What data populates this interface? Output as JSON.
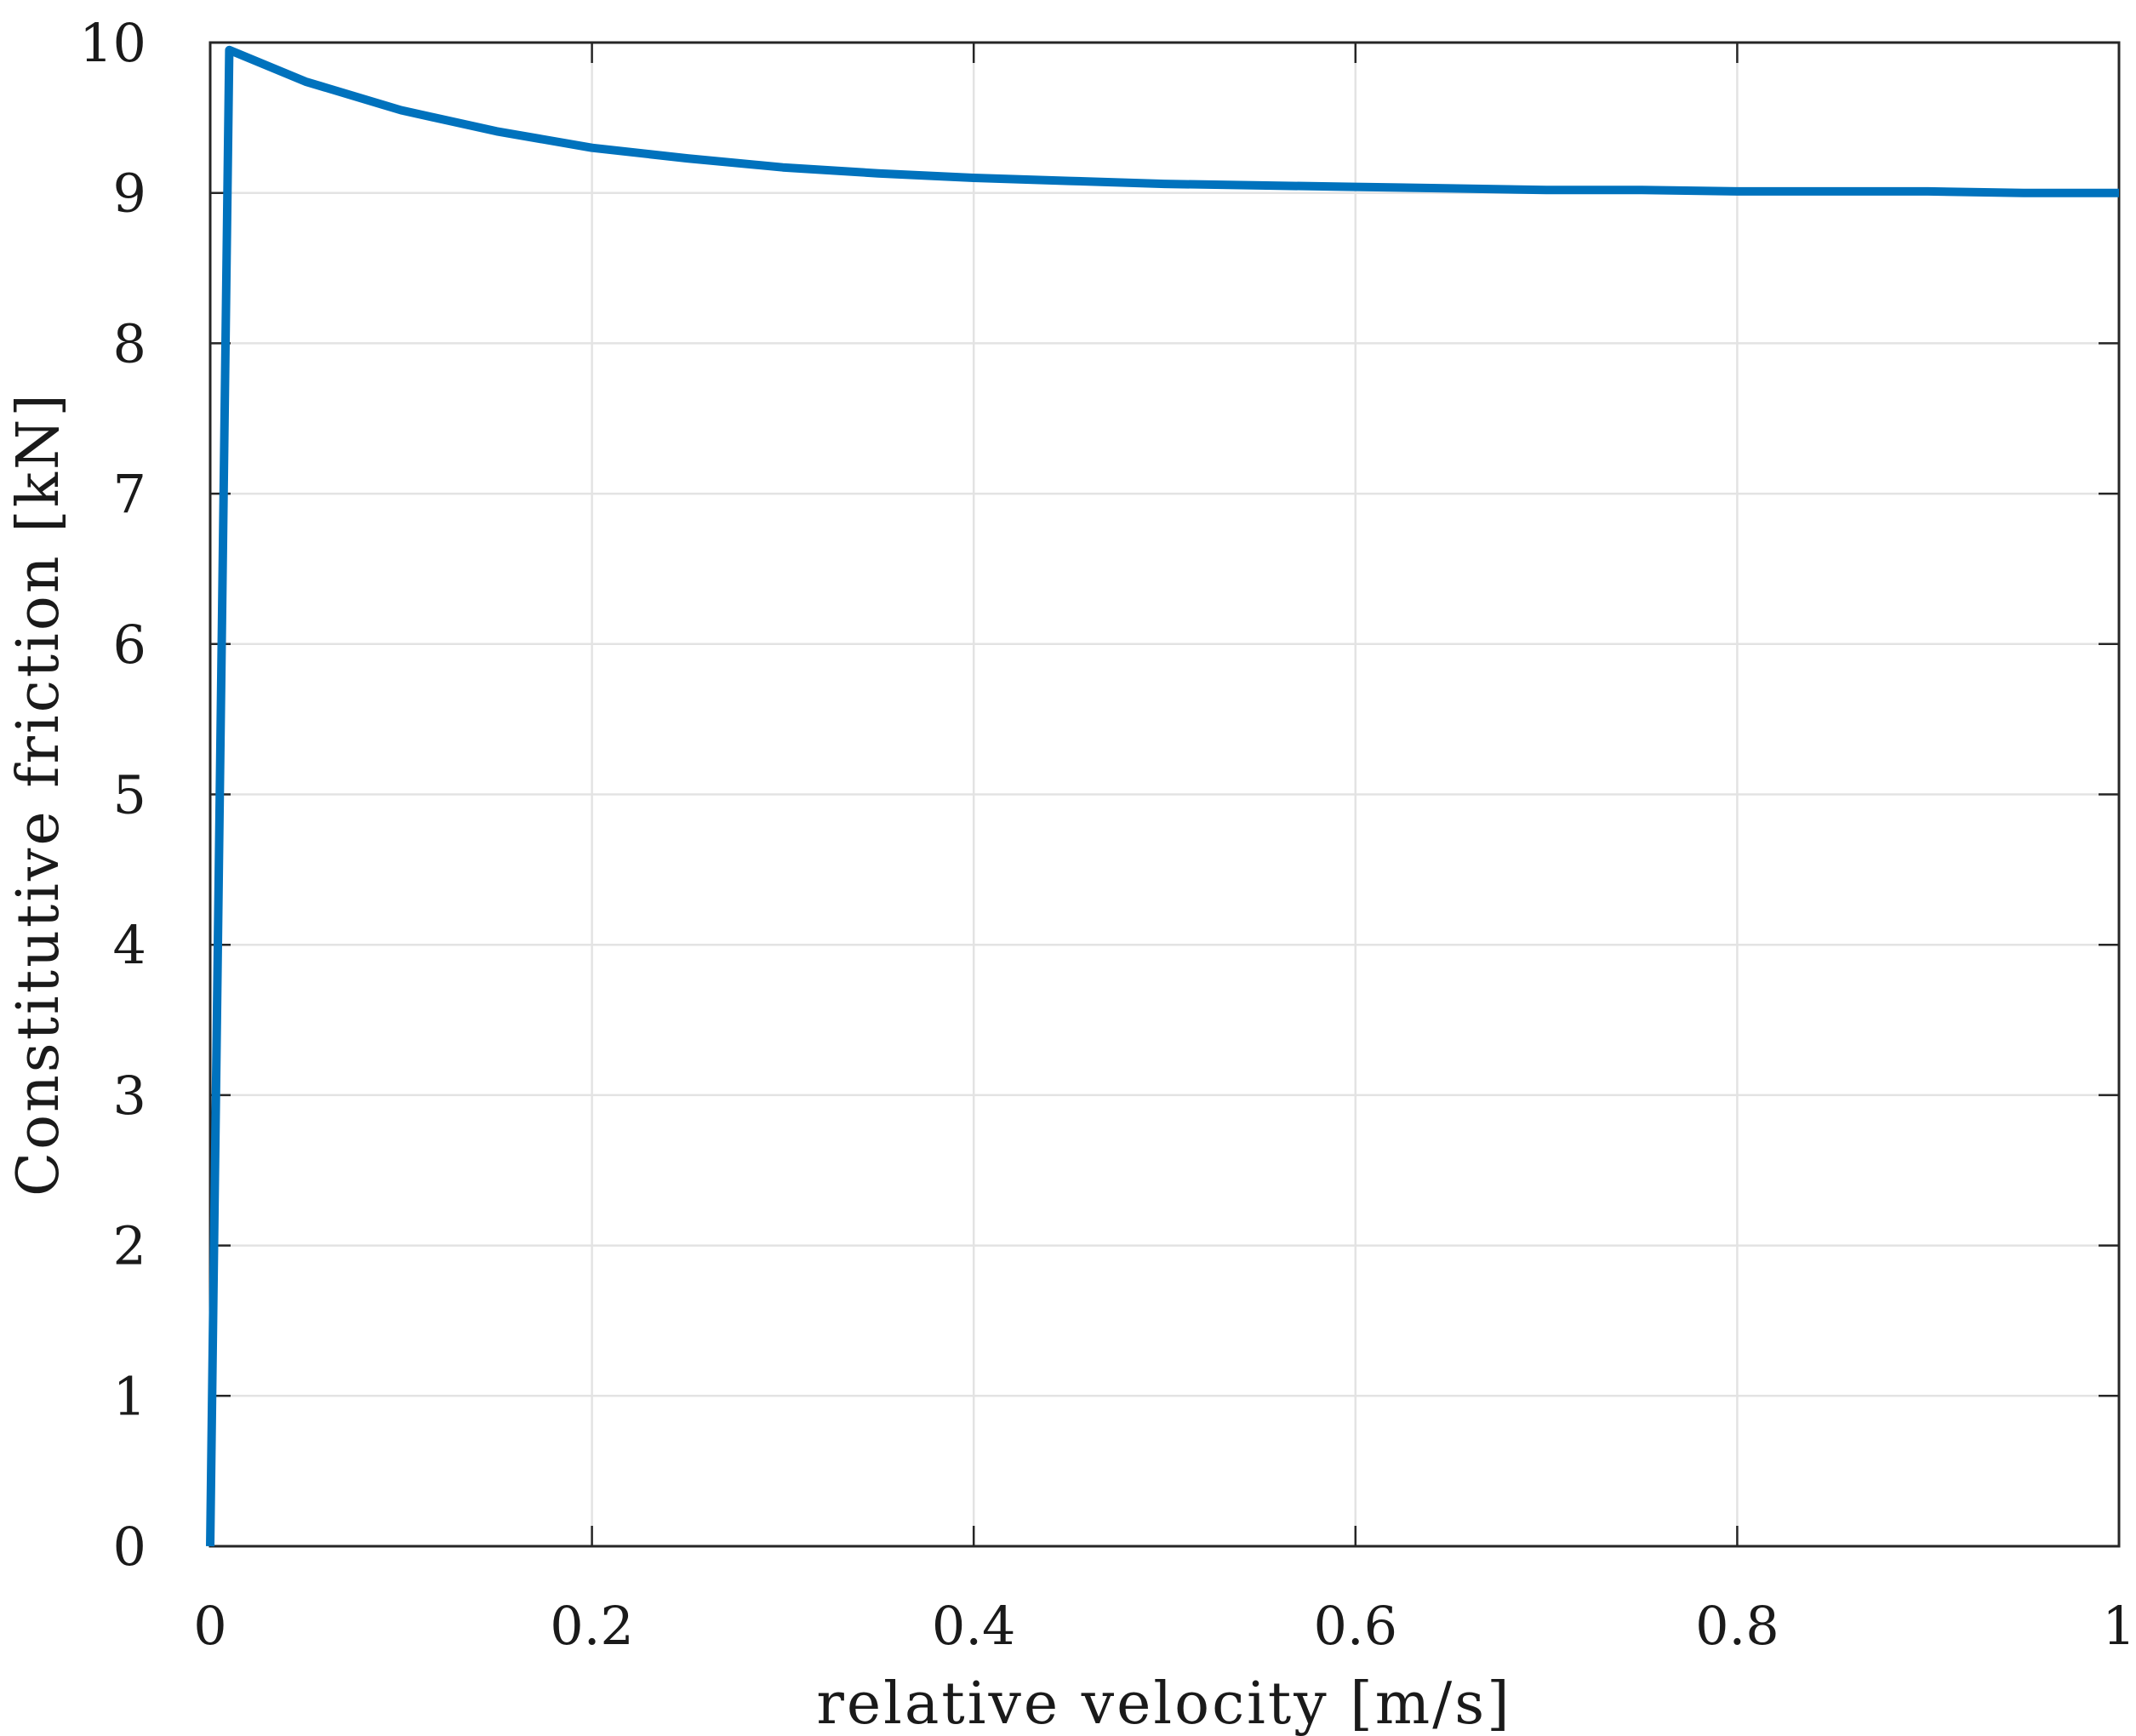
{
  "chart_data": {
    "type": "line",
    "title": "",
    "xlabel": "relative velocity [m/s]",
    "ylabel": "Constitutive friction [kN]",
    "xlim": [
      0,
      1
    ],
    "ylim": [
      0,
      10
    ],
    "xticks": [
      0,
      0.2,
      0.4,
      0.6,
      0.8,
      1
    ],
    "xtick_labels": [
      "0",
      "0.2",
      "0.4",
      "0.6",
      "0.8",
      "1"
    ],
    "yticks": [
      0,
      1,
      2,
      3,
      4,
      5,
      6,
      7,
      8,
      9,
      10
    ],
    "ytick_labels": [
      "0",
      "1",
      "2",
      "3",
      "4",
      "5",
      "6",
      "7",
      "8",
      "9",
      "10"
    ],
    "grid": true,
    "legend": "none",
    "series": [
      {
        "color": "#0072BD",
        "x": [
          0,
          0.01,
          0.05,
          0.1,
          0.15,
          0.2,
          0.25,
          0.3,
          0.35,
          0.4,
          0.45,
          0.5,
          0.55,
          0.6,
          0.65,
          0.7,
          0.75,
          0.8,
          0.85,
          0.9,
          0.95,
          1.0
        ],
        "y": [
          0,
          9.95,
          9.74,
          9.55,
          9.41,
          9.3,
          9.23,
          9.17,
          9.13,
          9.1,
          9.08,
          9.06,
          9.05,
          9.04,
          9.03,
          9.02,
          9.02,
          9.01,
          9.01,
          9.01,
          9.0,
          9.0
        ]
      }
    ]
  }
}
